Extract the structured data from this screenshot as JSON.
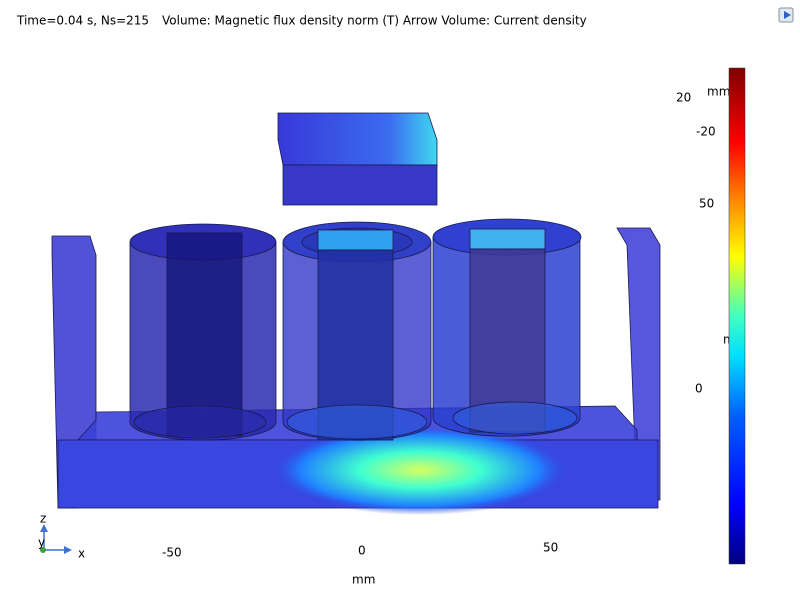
{
  "header": {
    "time_label": "Time=0.04 s, Ns=215",
    "plot_label": "Volume: Magnetic flux density norm (T)  Arrow Volume: Current density"
  },
  "axis_labels": [
    {
      "text": "20"
    },
    {
      "text": "mm"
    },
    {
      "text": "-20"
    },
    {
      "text": "50"
    },
    {
      "text": "m"
    },
    {
      "text": "0"
    },
    {
      "text": "-50"
    },
    {
      "text": "0"
    },
    {
      "text": "50"
    },
    {
      "text": "mm"
    }
  ],
  "triad": {
    "z": "z",
    "y": "y",
    "x": "x"
  },
  "colorbar": {
    "range": [
      0,
      2.35
    ],
    "ticks": [
      0.5,
      1,
      1.5,
      2
    ]
  }
}
